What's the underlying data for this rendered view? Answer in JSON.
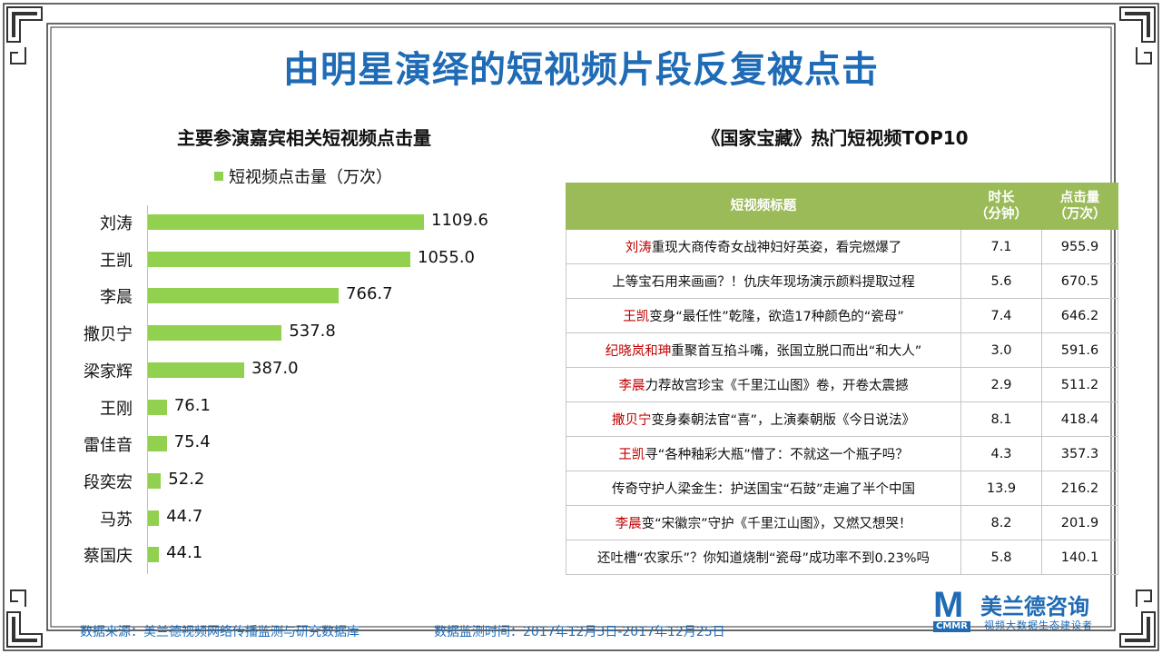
{
  "title": "由明星演绎的短视频片段反复被点击",
  "chart_data": {
    "type": "bar",
    "orientation": "horizontal",
    "title": "主要参演嘉宾相关短视频点击量",
    "legend_position": "top",
    "series": [
      {
        "name": "短视频点击量（万次）",
        "color": "#92d050",
        "values": [
          1109.6,
          1055.0,
          766.7,
          537.8,
          387.0,
          76.1,
          75.4,
          52.2,
          44.7,
          44.1
        ]
      }
    ],
    "categories": [
      "刘涛",
      "王凯",
      "李晨",
      "撒贝宁",
      "梁家辉",
      "王刚",
      "雷佳音",
      "段奕宏",
      "马苏",
      "蔡国庆"
    ],
    "value_labels": [
      "1109.6",
      "1055.0",
      "766.7",
      "537.8",
      "387.0",
      "76.1",
      "75.4",
      "52.2",
      "44.7",
      "44.1"
    ],
    "xlim": [
      0,
      1200
    ],
    "grid": false
  },
  "table": {
    "title": "《国家宝藏》热门短视频TOP10",
    "headers": [
      "短视频标题",
      "时长",
      "（分钟）",
      "点击量",
      "（万次）"
    ],
    "rows": [
      {
        "hl": "刘涛",
        "rest": "重现大商传奇女战神妇好英姿，看完燃爆了",
        "duration": "7.1",
        "clicks": "955.9"
      },
      {
        "hl": "",
        "rest": "上等宝石用来画画？！仇庆年现场演示颜料提取过程",
        "duration": "5.6",
        "clicks": "670.5"
      },
      {
        "hl": "王凯",
        "rest": "变身“最任性”乾隆，欲造17种颜色的“瓷母”",
        "duration": "7.4",
        "clicks": "646.2"
      },
      {
        "hl": "纪晓岚和珅",
        "rest": "重聚首互掐斗嘴，张国立脱口而出“和大人”",
        "duration": "3.0",
        "clicks": "591.6"
      },
      {
        "hl": "李晨",
        "rest": "力荐故宫珍宝《千里江山图》卷，开卷太震撼",
        "duration": "2.9",
        "clicks": "511.2"
      },
      {
        "hl": "撒贝宁",
        "rest": "变身秦朝法官“喜”，上演秦朝版《今日说法》",
        "duration": "8.1",
        "clicks": "418.4"
      },
      {
        "hl": "王凯",
        "rest": "寻“各种釉彩大瓶”懵了：不就这一个瓶子吗？",
        "duration": "4.3",
        "clicks": "357.3"
      },
      {
        "hl": "",
        "rest": "传奇守护人梁金生：护送国宝“石鼓”走遍了半个中国",
        "duration": "13.9",
        "clicks": "216.2"
      },
      {
        "hl": "李晨",
        "rest": "变“宋徽宗”守护《千里江山图》，又燃又想哭！",
        "duration": "8.2",
        "clicks": "201.9"
      },
      {
        "hl": "",
        "rest": "还吐槽“农家乐”？你知道烧制“瓷母”成功率不到0.23%吗",
        "duration": "5.8",
        "clicks": "140.1"
      }
    ]
  },
  "footer": {
    "source": "数据来源：美兰德视频网络传播监测与研究数据库",
    "period": "数据监测时间：2017年12月3日-2017年12月25日"
  },
  "logo": {
    "mark": "M",
    "abbr": "CMMR",
    "name": "美兰德咨询",
    "tagline": "视频大数据生态建设者"
  },
  "colors": {
    "title": "#1f6bb5",
    "bar": "#92d050",
    "table_header": "#9bbb59",
    "highlight": "#c00000",
    "frame": "#333333"
  }
}
